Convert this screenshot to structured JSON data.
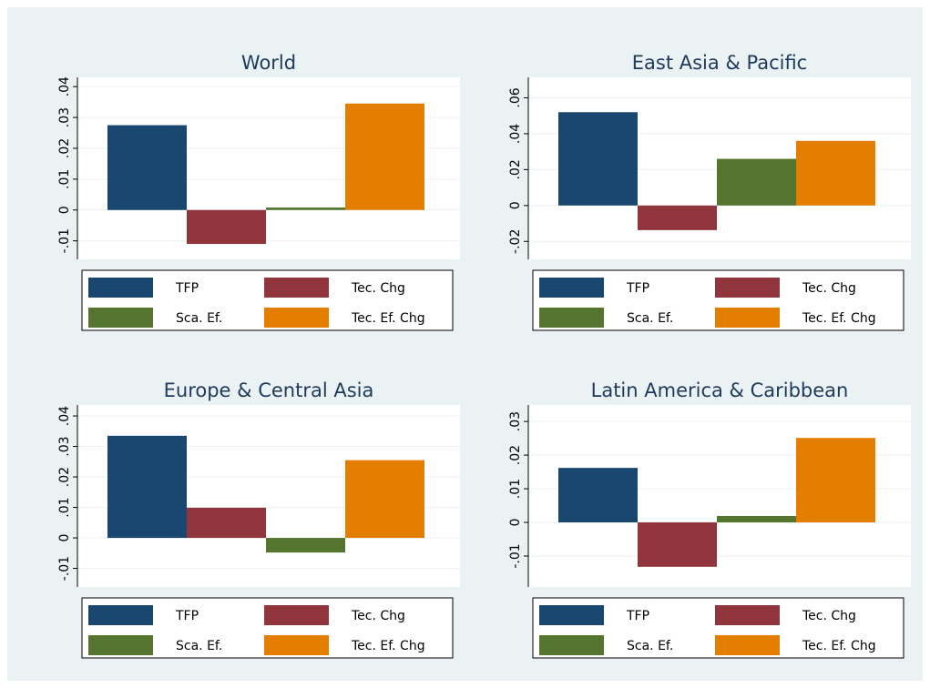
{
  "chart_data": [
    {
      "type": "bar",
      "title": "World",
      "categories": [
        "TFP",
        "Tec. Chg",
        "Sca. Ef.",
        "Tec. Ef. Chg"
      ],
      "values": [
        0.0275,
        -0.011,
        0.0008,
        0.0345
      ],
      "colors": [
        "#1a476f",
        "#90353b",
        "#55752f",
        "#e37e00"
      ],
      "ylim": [
        -0.016,
        0.043
      ],
      "yticks": [
        {
          "value": -0.01,
          "label": "-.01"
        },
        0,
        {
          "value": 0.01,
          "label": ".01"
        },
        {
          "value": 0.02,
          "label": ".02"
        },
        {
          "value": 0.03,
          "label": ".03"
        },
        {
          "value": 0.04,
          "label": ".04"
        }
      ],
      "grid": true
    },
    {
      "type": "bar",
      "title": "East Asia & Pacific",
      "categories": [
        "TFP",
        "Tec. Chg",
        "Sca. Ef.",
        "Tec. Ef. Chg"
      ],
      "values": [
        0.052,
        -0.0137,
        0.026,
        0.036
      ],
      "colors": [
        "#1a476f",
        "#90353b",
        "#55752f",
        "#e37e00"
      ],
      "ylim": [
        -0.03,
        0.0714
      ],
      "yticks": [
        {
          "value": -0.02,
          "label": "-.02"
        },
        0,
        {
          "value": 0.02,
          "label": ".02"
        },
        {
          "value": 0.04,
          "label": ".04"
        },
        {
          "value": 0.06,
          "label": ".06"
        }
      ],
      "grid": true
    },
    {
      "type": "bar",
      "title": "Europe & Central Asia",
      "categories": [
        "TFP",
        "Tec. Chg",
        "Sca. Ef.",
        "Tec. Ef. Chg"
      ],
      "values": [
        0.0335,
        0.0099,
        -0.0048,
        0.0255
      ],
      "colors": [
        "#1a476f",
        "#90353b",
        "#55752f",
        "#e37e00"
      ],
      "ylim": [
        -0.0161,
        0.0436
      ],
      "yticks": [
        {
          "value": -0.01,
          "label": "-.01"
        },
        0,
        {
          "value": 0.01,
          "label": ".01"
        },
        {
          "value": 0.02,
          "label": ".02"
        },
        {
          "value": 0.03,
          "label": ".03"
        },
        {
          "value": 0.04,
          "label": ".04"
        }
      ],
      "grid": true
    },
    {
      "type": "bar",
      "title": "Latin America & Caribbean",
      "categories": [
        "TFP",
        "Tec. Chg",
        "Sca. Ef.",
        "Tec. Ef. Chg"
      ],
      "values": [
        0.0162,
        -0.0132,
        0.0019,
        0.0251
      ],
      "colors": [
        "#1a476f",
        "#90353b",
        "#55752f",
        "#e37e00"
      ],
      "ylim": [
        -0.0192,
        0.0349
      ],
      "yticks": [
        {
          "value": -0.01,
          "label": "-.01"
        },
        0,
        {
          "value": 0.01,
          "label": ".01"
        },
        {
          "value": 0.02,
          "label": ".02"
        },
        {
          "value": 0.03,
          "label": ".03"
        }
      ],
      "grid": true
    }
  ]
}
